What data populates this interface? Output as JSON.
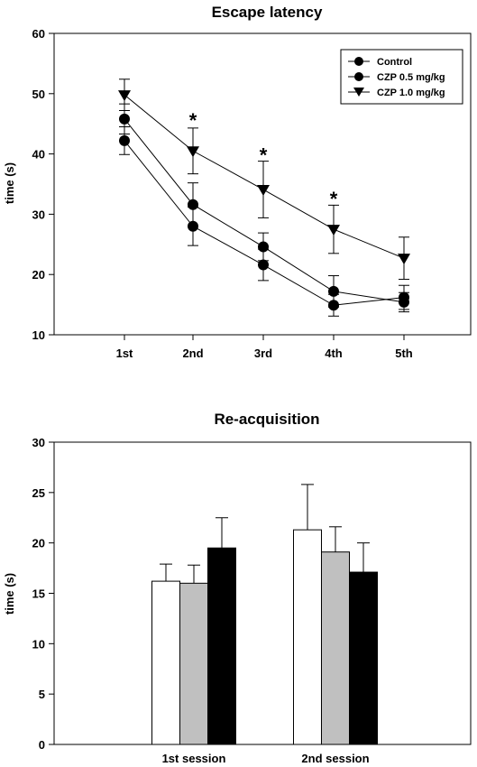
{
  "chart_data": [
    {
      "type": "line",
      "title": "Escape latency",
      "xlabel": "",
      "ylabel": "time (s)",
      "categories": [
        "1st",
        "2nd",
        "3rd",
        "4th",
        "5th"
      ],
      "ylim": [
        10,
        60
      ],
      "yticks": [
        10,
        20,
        30,
        40,
        50,
        60
      ],
      "grid": false,
      "legend_position": "top-right",
      "series": [
        {
          "name": "Control",
          "marker": "circle",
          "color": "#000000",
          "values": [
            42.2,
            28.0,
            21.6,
            14.9,
            16.2
          ],
          "errors": [
            2.3,
            3.2,
            2.6,
            1.8,
            2.0
          ]
        },
        {
          "name": "CZP 0.5 mg/kg",
          "marker": "circle",
          "color": "#000000",
          "values": [
            45.8,
            31.6,
            24.6,
            17.2,
            15.4
          ],
          "errors": [
            2.5,
            3.6,
            2.3,
            2.6,
            1.6
          ]
        },
        {
          "name": "CZP 1.0 mg/kg",
          "marker": "triangle-down",
          "color": "#000000",
          "values": [
            49.8,
            40.5,
            34.1,
            27.5,
            22.7
          ],
          "errors": [
            2.6,
            3.8,
            4.7,
            4.0,
            3.5
          ]
        }
      ],
      "annotations": [
        {
          "text": "*",
          "category": "2nd",
          "y": 46.5
        },
        {
          "text": "*",
          "category": "3rd",
          "y": 40.8
        },
        {
          "text": "*",
          "category": "4th",
          "y": 33.5
        }
      ]
    },
    {
      "type": "bar",
      "title": "Re-acquisition",
      "xlabel": "",
      "ylabel": "time (s)",
      "categories": [
        "1st session",
        "2nd session"
      ],
      "ylim": [
        0,
        30
      ],
      "yticks": [
        0,
        5,
        10,
        15,
        20,
        25,
        30
      ],
      "grid": false,
      "series": [
        {
          "color": "#ffffff",
          "values": [
            16.2,
            21.3
          ],
          "errors": [
            1.7,
            4.5
          ]
        },
        {
          "color": "#c0c0c0",
          "values": [
            16.0,
            19.1
          ],
          "errors": [
            1.8,
            2.5
          ]
        },
        {
          "color": "#000000",
          "values": [
            19.5,
            17.1
          ],
          "errors": [
            3.0,
            2.9
          ]
        }
      ]
    }
  ]
}
